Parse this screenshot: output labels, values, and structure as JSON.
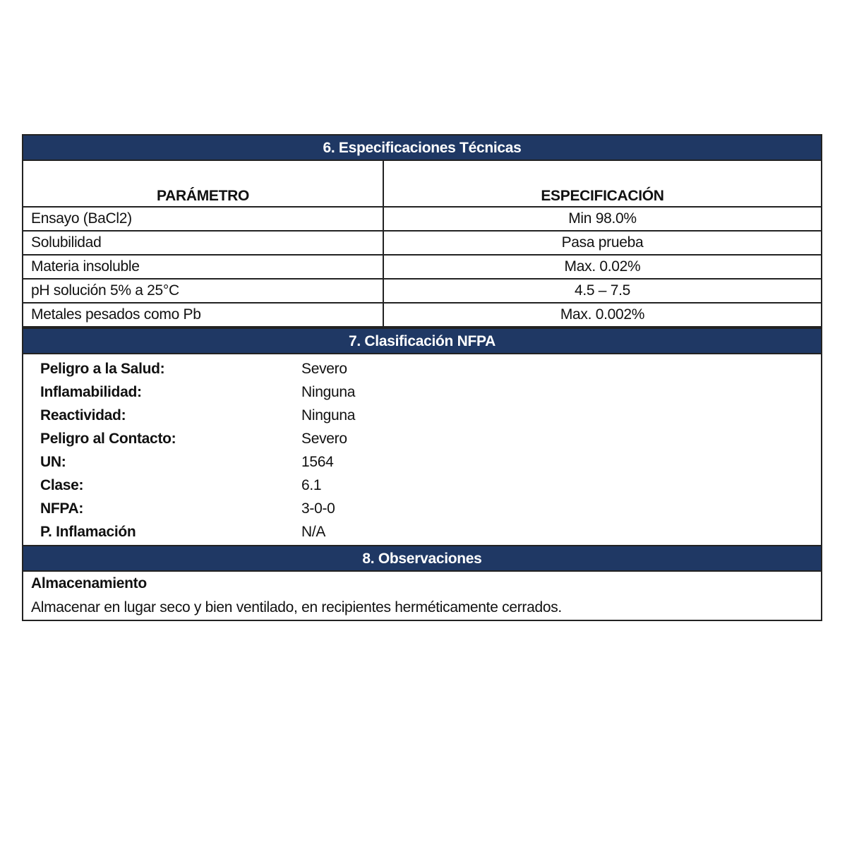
{
  "colors": {
    "header_bg": "#1f3864",
    "header_text": "#ffffff"
  },
  "section6": {
    "title": "6. Especificaciones Técnicas",
    "col_param": "PARÁMETRO",
    "col_spec": "ESPECIFICACIÓN",
    "rows": [
      {
        "param": "Ensayo (BaCl2)",
        "spec": "Min 98.0%"
      },
      {
        "param": "Solubilidad",
        "spec": "Pasa prueba"
      },
      {
        "param": "Materia insoluble",
        "spec": "Max. 0.02%"
      },
      {
        "param": "pH solución 5% a 25°C",
        "spec": "4.5 – 7.5"
      },
      {
        "param": "Metales pesados como Pb",
        "spec": "Max. 0.002%"
      }
    ]
  },
  "section7": {
    "title": "7. Clasificación NFPA",
    "rows": [
      {
        "label": "Peligro a la Salud:",
        "value": "Severo"
      },
      {
        "label": "Inflamabilidad:",
        "value": "Ninguna"
      },
      {
        "label": "Reactividad:",
        "value": "Ninguna"
      },
      {
        "label": "Peligro al Contacto:",
        "value": "Severo"
      },
      {
        "label": "UN:",
        "value": "1564"
      },
      {
        "label": "Clase:",
        "value": "6.1"
      },
      {
        "label": "NFPA:",
        "value": "3-0-0"
      },
      {
        "label": "P. Inflamación",
        "value": "N/A"
      }
    ]
  },
  "section8": {
    "title": "8. Observaciones",
    "subtitle": "Almacenamiento",
    "text": "Almacenar en lugar seco y bien ventilado, en recipientes herméticamente cerrados."
  }
}
